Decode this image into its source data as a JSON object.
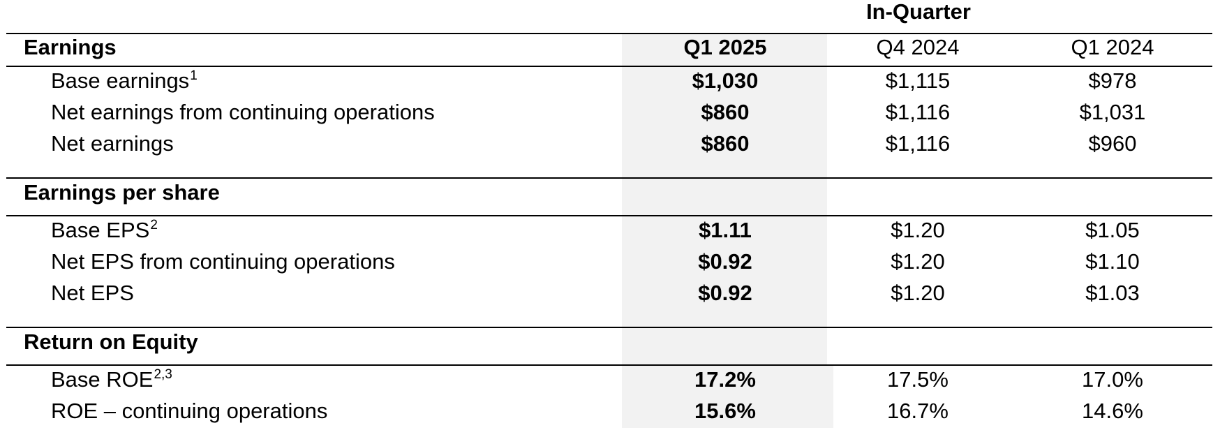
{
  "header": {
    "group_label": "In-Quarter",
    "section_label": "Earnings",
    "columns": [
      "Q1 2025",
      "Q4 2024",
      "Q1 2024"
    ]
  },
  "sections": [
    {
      "title": "Earnings",
      "rows": [
        {
          "label": "Base earnings",
          "sup": "1",
          "values": [
            "$1,030",
            "$1,115",
            "$978"
          ]
        },
        {
          "label": "Net earnings from continuing operations",
          "sup": "",
          "values": [
            "$860",
            "$1,116",
            "$1,031"
          ]
        },
        {
          "label": "Net earnings",
          "sup": "",
          "values": [
            "$860",
            "$1,116",
            "$960"
          ]
        }
      ]
    },
    {
      "title": "Earnings per share",
      "rows": [
        {
          "label": "Base EPS",
          "sup": "2",
          "values": [
            "$1.11",
            "$1.20",
            "$1.05"
          ]
        },
        {
          "label": "Net EPS from continuing operations",
          "sup": "",
          "values": [
            "$0.92",
            "$1.20",
            "$1.10"
          ]
        },
        {
          "label": "Net EPS",
          "sup": "",
          "values": [
            "$0.92",
            "$1.20",
            "$1.03"
          ]
        }
      ]
    },
    {
      "title": "Return on Equity",
      "rows": [
        {
          "label": "Base ROE",
          "sup": "2,3",
          "values": [
            "17.2%",
            "17.5%",
            "17.0%"
          ]
        },
        {
          "label": "ROE – continuing operations",
          "sup": "",
          "values": [
            "15.6%",
            "16.7%",
            "14.6%"
          ]
        }
      ]
    }
  ]
}
